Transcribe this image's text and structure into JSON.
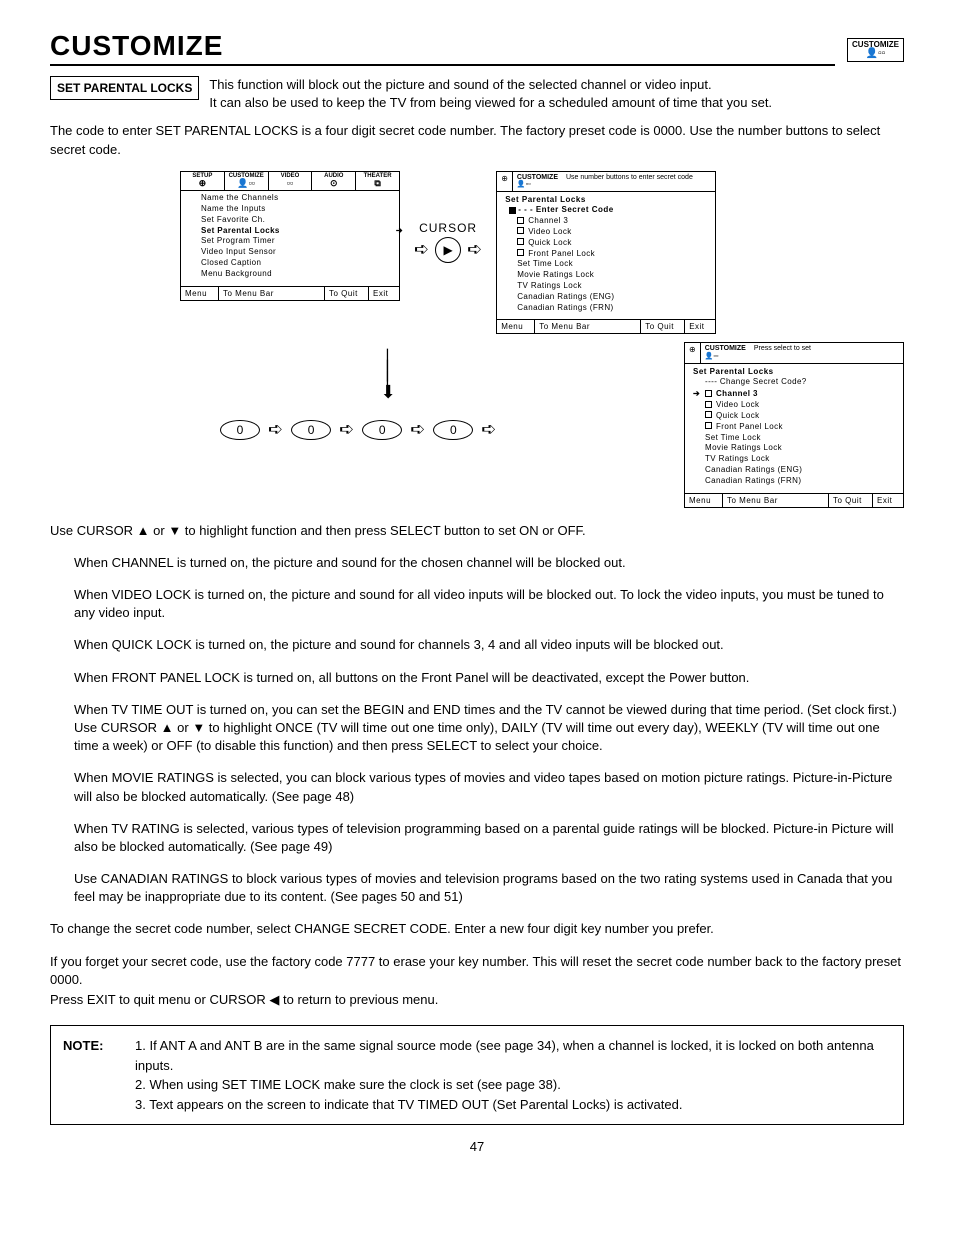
{
  "page": {
    "title": "CUSTOMIZE",
    "corner_label": "CUSTOMIZE",
    "number": "47"
  },
  "section_box_label": "SET PARENTAL LOCKS",
  "intro": {
    "line1": "This function will block out the picture and sound of the selected channel or video input.",
    "line2": "It can also be used to keep the TV from being viewed for a scheduled amount of time that you set."
  },
  "preamble": "The code to enter SET PARENTAL LOCKS is a four digit secret code number.  The factory preset code is 0000. Use the number buttons to select secret code.",
  "tabs": [
    "SETUP",
    "CUSTOMIZE",
    "VIDEO",
    "AUDIO",
    "THEATER"
  ],
  "tab_icons": [
    "⊕",
    "👤▫▫",
    "▫▫",
    "⊙",
    "⧉"
  ],
  "panel1": {
    "items": [
      "Name the Channels",
      "Name the Inputs",
      "Set Favorite Ch.",
      "Set Parental Locks",
      "Set Program Timer",
      "Video Input Sensor",
      "Closed Caption",
      "Menu Background"
    ],
    "selected_index": 3
  },
  "cursor_label": "CURSOR",
  "panel2": {
    "header_msg": "Use number buttons to enter secret code",
    "title": "Set Parental Locks",
    "secret_prompt": "- - -  Enter Secret Code",
    "items": [
      "Channel 3",
      "Video Lock",
      "Quick Lock",
      "Front Panel Lock",
      "Set Time Lock",
      "Movie Ratings Lock",
      "TV Ratings Lock",
      "Canadian Ratings (ENG)",
      "Canadian Ratings (FRN)"
    ]
  },
  "code_digits": [
    "0",
    "0",
    "0",
    "0"
  ],
  "panel3": {
    "header_msg": "Press select to set",
    "title": "Set Parental Locks",
    "change_line": "----  Change Secret Code?",
    "items": [
      "Channel 3",
      "Video Lock",
      "Quick Lock",
      "Front Panel Lock",
      "Set Time Lock",
      "Movie Ratings Lock",
      "TV Ratings Lock",
      "Canadian Ratings (ENG)",
      "Canadian Ratings (FRN)"
    ],
    "selected_index": 0
  },
  "footer": {
    "c1": "Menu",
    "c2": "To Menu Bar",
    "c3": "To Quit",
    "c4": "Exit"
  },
  "instructions": {
    "lead": "Use CURSOR ▲ or ▼ to highlight function and then press SELECT button to set ON or OFF.",
    "p1": "When CHANNEL is turned on, the picture and sound for the chosen channel will be blocked out.",
    "p2": "When VIDEO LOCK is turned on, the picture and sound for all video inputs will be blocked out. To lock the video inputs, you must be tuned to any video input.",
    "p3": "When QUICK LOCK is turned on, the picture and sound for channels 3, 4 and all video inputs will be blocked out.",
    "p4": "When FRONT PANEL LOCK is turned on, all buttons on the Front Panel will be deactivated, except the Power button.",
    "p5": "When TV TIME OUT is turned on, you can set the BEGIN and END times and the TV cannot be viewed during that time period. (Set clock first.) Use CURSOR ▲ or ▼ to highlight ONCE (TV will time out one time only), DAILY (TV will time out every day), WEEKLY (TV will time out one time a week) or OFF (to disable this function) and then press SELECT to select your choice.",
    "p6": "When MOVIE RATINGS is selected, you can block various types of movies and video tapes based on motion picture ratings.  Picture-in-Picture will also be blocked automatically. (See page 48)",
    "p7": "When TV RATING is selected, various types of television programming based on a parental guide ratings will be blocked.  Picture-in Picture will also be blocked automatically.  (See page 49)",
    "p8": "Use CANADIAN RATINGS to block various types of movies and television programs based on the two rating systems used in Canada that you feel may be inappropriate due to its content.  (See pages 50 and 51)",
    "tail1": "To change the secret code number, select CHANGE SECRET CODE.  Enter a new four digit key number you prefer.",
    "tail2": "If you forget your secret code, use the factory code 7777 to erase your key number. This will reset the secret code number back to the factory preset 0000.",
    "tail3": "Press EXIT to quit menu or CURSOR ◀ to return to previous menu."
  },
  "note": {
    "label": "NOTE:",
    "n1": "1. If ANT A and ANT B are in the same signal source mode (see page 34), when a channel is locked, it is locked on both antenna inputs.",
    "n2": "2. When using SET TIME LOCK make sure the clock is set (see page 38).",
    "n3": "3. Text appears on the screen to indicate that TV TIMED OUT (Set Parental Locks) is activated."
  }
}
